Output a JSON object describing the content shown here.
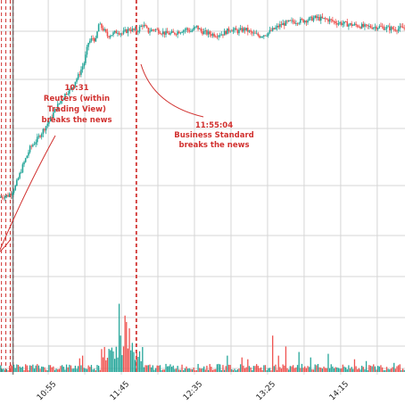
{
  "chart_data": {
    "type": "candlestick",
    "title": "",
    "xlabel": "",
    "ylabel": "",
    "grid": true,
    "x_ticks": [
      "10:55",
      "11:45",
      "12:35",
      "13:25",
      "14:15"
    ],
    "x_tick_minutes": [
      655,
      705,
      755,
      805,
      855
    ],
    "x_range_minutes": [
      622,
      899
    ],
    "y_range": [
      0,
      100
    ],
    "volume_range": [
      0,
      100
    ],
    "colors": {
      "up": "#26a69a",
      "down": "#ef5350",
      "annotation": "#d1312f",
      "grid": "#d6d6d6"
    },
    "events": [
      {
        "time_minutes": 623,
        "style": "dashed"
      },
      {
        "time_minutes": 626,
        "style": "dashed"
      },
      {
        "time_minutes": 629,
        "style": "dashed"
      },
      {
        "time_minutes": 631,
        "style": "dashed"
      },
      {
        "time_minutes": 631,
        "style": "solid"
      },
      {
        "time_minutes": 715,
        "style": "dashed"
      },
      {
        "time_minutes": 715.5,
        "style": "dashed"
      }
    ],
    "annotations": [
      {
        "lines": [
          "10:31",
          "Reuters (within",
          "Trading View)",
          "breaks the news"
        ],
        "time_minutes": 631
      },
      {
        "lines": [
          "11:55:04",
          "Business Standard",
          "breaks the news"
        ],
        "time_minutes": 715
      }
    ],
    "price_path": [
      [
        622,
        20
      ],
      [
        624,
        20.5
      ],
      [
        628,
        21
      ],
      [
        630,
        22
      ],
      [
        633,
        25
      ],
      [
        638,
        34
      ],
      [
        643,
        42
      ],
      [
        648,
        46
      ],
      [
        652,
        50
      ],
      [
        657,
        55
      ],
      [
        661,
        60
      ],
      [
        665,
        64
      ],
      [
        668,
        67
      ],
      [
        671,
        68
      ],
      [
        674,
        72
      ],
      [
        676,
        74
      ],
      [
        680,
        80
      ],
      [
        683,
        89
      ],
      [
        686,
        91
      ],
      [
        688,
        90
      ],
      [
        690,
        97
      ],
      [
        693,
        95
      ],
      [
        696,
        92
      ],
      [
        700,
        93
      ],
      [
        703,
        94
      ],
      [
        706,
        93
      ],
      [
        711,
        95
      ],
      [
        716,
        94
      ],
      [
        720,
        97
      ],
      [
        724,
        94
      ],
      [
        728,
        95
      ],
      [
        732,
        94
      ],
      [
        736,
        93
      ],
      [
        741,
        93
      ],
      [
        745,
        94
      ],
      [
        750,
        95
      ],
      [
        753,
        94
      ],
      [
        757,
        96
      ],
      [
        760,
        94
      ],
      [
        765,
        93
      ],
      [
        770,
        92.5
      ],
      [
        775,
        93
      ],
      [
        780,
        95
      ],
      [
        785,
        94
      ],
      [
        790,
        95
      ],
      [
        795,
        93
      ],
      [
        800,
        92
      ],
      [
        805,
        93
      ],
      [
        810,
        95
      ],
      [
        815,
        97
      ],
      [
        820,
        98
      ],
      [
        826,
        98.5
      ],
      [
        832,
        99
      ],
      [
        838,
        100
      ],
      [
        843,
        99.5
      ],
      [
        848,
        99
      ],
      [
        852,
        98
      ],
      [
        857,
        97.5
      ],
      [
        862,
        97
      ],
      [
        868,
        96.5
      ],
      [
        872,
        96
      ],
      [
        877,
        96
      ],
      [
        882,
        96
      ],
      [
        887,
        95.5
      ],
      [
        892,
        95
      ],
      [
        896,
        95.3
      ],
      [
        899,
        95.5
      ]
    ],
    "volume_spikes": [
      [
        631,
        8
      ],
      [
        678,
        18
      ],
      [
        703,
        75
      ],
      [
        704,
        40
      ],
      [
        707,
        62
      ],
      [
        708,
        55
      ],
      [
        710,
        48
      ],
      [
        712,
        32
      ],
      [
        706,
        28
      ],
      [
        713,
        22
      ],
      [
        676,
        15
      ],
      [
        697,
        24
      ],
      [
        777,
        18
      ],
      [
        787,
        16
      ],
      [
        791,
        14
      ],
      [
        808,
        40
      ],
      [
        812,
        18
      ],
      [
        817,
        28
      ],
      [
        826,
        22
      ],
      [
        834,
        16
      ],
      [
        846,
        20
      ],
      [
        864,
        14
      ],
      [
        872,
        12
      ],
      [
        891,
        10
      ]
    ],
    "volume_base": 6
  }
}
